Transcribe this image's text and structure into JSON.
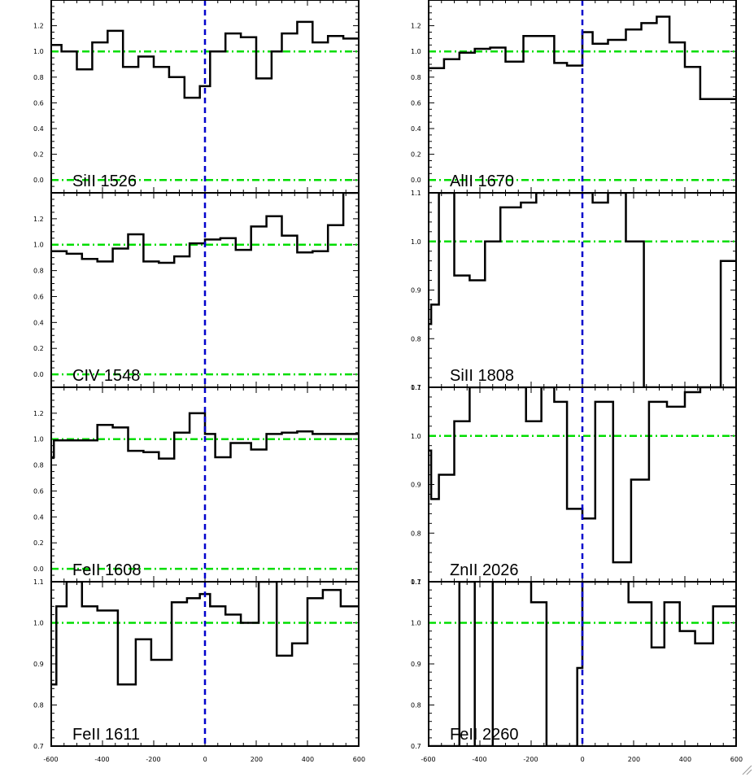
{
  "chart_data": [
    {
      "type": "line",
      "step": true,
      "label": "SiII 1526",
      "xlim": [
        -600,
        600
      ],
      "ylim": [
        -0.1,
        1.4
      ],
      "yticks": [
        "0.0",
        "0.2",
        "0.4",
        "0.6",
        "0.8",
        "1.0",
        "1.2"
      ],
      "edges": [
        -600,
        -560,
        -500,
        -440,
        -380,
        -320,
        -260,
        -200,
        -140,
        -80,
        -20,
        20,
        80,
        140,
        200,
        260,
        300,
        360,
        420,
        480,
        540,
        580,
        600
      ],
      "values": [
        1.05,
        1.0,
        0.86,
        1.07,
        1.16,
        0.88,
        0.96,
        0.88,
        0.8,
        0.64,
        0.73,
        1.0,
        1.14,
        1.11,
        0.79,
        1.0,
        1.14,
        1.23,
        1.07,
        1.12,
        1.1,
        1.1
      ],
      "reference_lines": [
        1.0,
        0.0
      ]
    },
    {
      "type": "line",
      "step": true,
      "label": "AlII 1670",
      "xlim": [
        -600,
        600
      ],
      "ylim": [
        -0.1,
        1.4
      ],
      "yticks": [
        "0.0",
        "0.2",
        "0.4",
        "0.6",
        "0.8",
        "1.0",
        "1.2"
      ],
      "edges": [
        -600,
        -590,
        -540,
        -480,
        -420,
        -360,
        -300,
        -230,
        -170,
        -110,
        -60,
        0,
        40,
        100,
        170,
        230,
        290,
        340,
        400,
        460,
        520,
        590,
        600
      ],
      "values": [
        0.87,
        0.87,
        0.94,
        0.99,
        1.02,
        1.03,
        0.92,
        1.12,
        1.12,
        0.91,
        0.89,
        1.15,
        1.06,
        1.09,
        1.17,
        1.22,
        1.27,
        1.07,
        0.88,
        0.63,
        0.63,
        0.63
      ],
      "reference_lines": [
        1.0,
        0.0
      ]
    },
    {
      "type": "line",
      "step": true,
      "label": "CIV 1548",
      "xlim": [
        -600,
        600
      ],
      "ylim": [
        -0.1,
        1.4
      ],
      "yticks": [
        "0.0",
        "0.2",
        "0.4",
        "0.6",
        "0.8",
        "1.0",
        "1.2"
      ],
      "edges": [
        -600,
        -540,
        -480,
        -420,
        -360,
        -300,
        -240,
        -180,
        -120,
        -60,
        0,
        60,
        120,
        180,
        240,
        300,
        360,
        420,
        480,
        540,
        590,
        600
      ],
      "values": [
        0.95,
        0.93,
        0.89,
        0.87,
        0.97,
        1.08,
        0.87,
        0.86,
        0.91,
        1.01,
        1.04,
        1.05,
        0.96,
        1.14,
        1.22,
        1.07,
        0.94,
        0.95,
        1.15,
        1.42,
        1.42
      ],
      "reference_lines": [
        1.0,
        0.0
      ]
    },
    {
      "type": "line",
      "step": true,
      "label": "SiII 1808",
      "xlim": [
        -600,
        600
      ],
      "ylim": [
        0.7,
        1.1
      ],
      "yticks": [
        "0.7",
        "0.8",
        "0.9",
        "1.0",
        "1.1"
      ],
      "edges": [
        -600,
        -590,
        -560,
        -500,
        -440,
        -380,
        -320,
        -240,
        -180,
        -120,
        -60,
        0,
        40,
        100,
        170,
        240,
        300,
        360,
        420,
        480,
        540,
        590,
        600
      ],
      "values": [
        0.83,
        0.87,
        1.1,
        0.93,
        0.92,
        1.0,
        1.07,
        1.08,
        1.1,
        1.11,
        1.11,
        1.11,
        1.08,
        1.11,
        1.0,
        0.7,
        0.7,
        0.7,
        0.7,
        0.7,
        0.96,
        0.96
      ],
      "reference_lines": [
        1.0
      ]
    },
    {
      "type": "line",
      "step": true,
      "label": "FeII 1608",
      "xlim": [
        -600,
        600
      ],
      "ylim": [
        -0.1,
        1.4
      ],
      "yticks": [
        "0.0",
        "0.2",
        "0.4",
        "0.6",
        "0.8",
        "1.0",
        "1.2"
      ],
      "edges": [
        -600,
        -590,
        -540,
        -480,
        -420,
        -360,
        -300,
        -240,
        -180,
        -120,
        -60,
        0,
        40,
        100,
        180,
        240,
        300,
        360,
        420,
        480,
        540,
        600
      ],
      "values": [
        0.86,
        0.99,
        0.99,
        0.99,
        1.11,
        1.09,
        0.91,
        0.9,
        0.85,
        1.05,
        1.2,
        1.04,
        0.86,
        0.97,
        0.92,
        1.04,
        1.05,
        1.06,
        1.04,
        1.04,
        1.04
      ],
      "reference_lines": [
        1.0,
        0.0
      ]
    },
    {
      "type": "line",
      "step": true,
      "label": "ZnII 2026",
      "xlim": [
        -600,
        600
      ],
      "ylim": [
        0.7,
        1.1
      ],
      "yticks": [
        "0.7",
        "0.8",
        "0.9",
        "1.0",
        "1.1"
      ],
      "edges": [
        -600,
        -590,
        -560,
        -500,
        -440,
        -360,
        -300,
        -220,
        -160,
        -110,
        -60,
        0,
        50,
        120,
        190,
        260,
        330,
        400,
        460,
        520,
        580,
        600
      ],
      "values": [
        0.97,
        0.87,
        0.92,
        1.03,
        1.1,
        1.15,
        1.1,
        1.03,
        1.1,
        1.07,
        0.85,
        0.83,
        1.07,
        0.74,
        0.91,
        1.07,
        1.06,
        1.09,
        1.1,
        1.1,
        1.1
      ],
      "reference_lines": [
        1.0
      ]
    },
    {
      "type": "line",
      "step": true,
      "label": "FeII 1611",
      "xlim": [
        -600,
        600
      ],
      "ylim": [
        0.7,
        1.1
      ],
      "yticks": [
        "0.7",
        "0.8",
        "0.9",
        "1.0",
        "1.1"
      ],
      "edges": [
        -600,
        -580,
        -540,
        -480,
        -420,
        -340,
        -270,
        -210,
        -130,
        -70,
        -20,
        20,
        80,
        140,
        210,
        280,
        340,
        400,
        460,
        530,
        580,
        600
      ],
      "values": [
        0.85,
        1.04,
        1.1,
        1.04,
        1.03,
        0.85,
        0.96,
        0.91,
        1.05,
        1.06,
        1.07,
        1.04,
        1.02,
        1.0,
        1.1,
        0.92,
        0.95,
        1.06,
        1.08,
        1.04,
        1.04
      ],
      "reference_lines": [
        1.0
      ]
    },
    {
      "type": "line",
      "step": true,
      "label": "FeII 2260",
      "xlim": [
        -600,
        600
      ],
      "ylim": [
        0.7,
        1.1
      ],
      "yticks": [
        "0.7",
        "0.8",
        "0.9",
        "1.0",
        "1.1"
      ],
      "edges": [
        -600,
        -540,
        -480,
        -420,
        -350,
        -280,
        -200,
        -140,
        -80,
        -20,
        0,
        40,
        110,
        180,
        270,
        320,
        380,
        440,
        510,
        580,
        600
      ],
      "values": [
        0.7,
        0.7,
        1.1,
        0.7,
        1.1,
        1.1,
        1.05,
        0.7,
        0.7,
        0.89,
        1.1,
        1.1,
        1.1,
        1.05,
        0.94,
        1.05,
        0.98,
        0.95,
        1.04,
        1.04
      ],
      "reference_lines": [
        1.0
      ]
    }
  ],
  "shared_x_ticks": [
    "-600",
    "-400",
    "-200",
    "0",
    "200",
    "400",
    "600"
  ],
  "colors": {
    "data_line": "#000000",
    "reference_line": "#00dd00",
    "zero_velocity_line": "#0000cc"
  }
}
